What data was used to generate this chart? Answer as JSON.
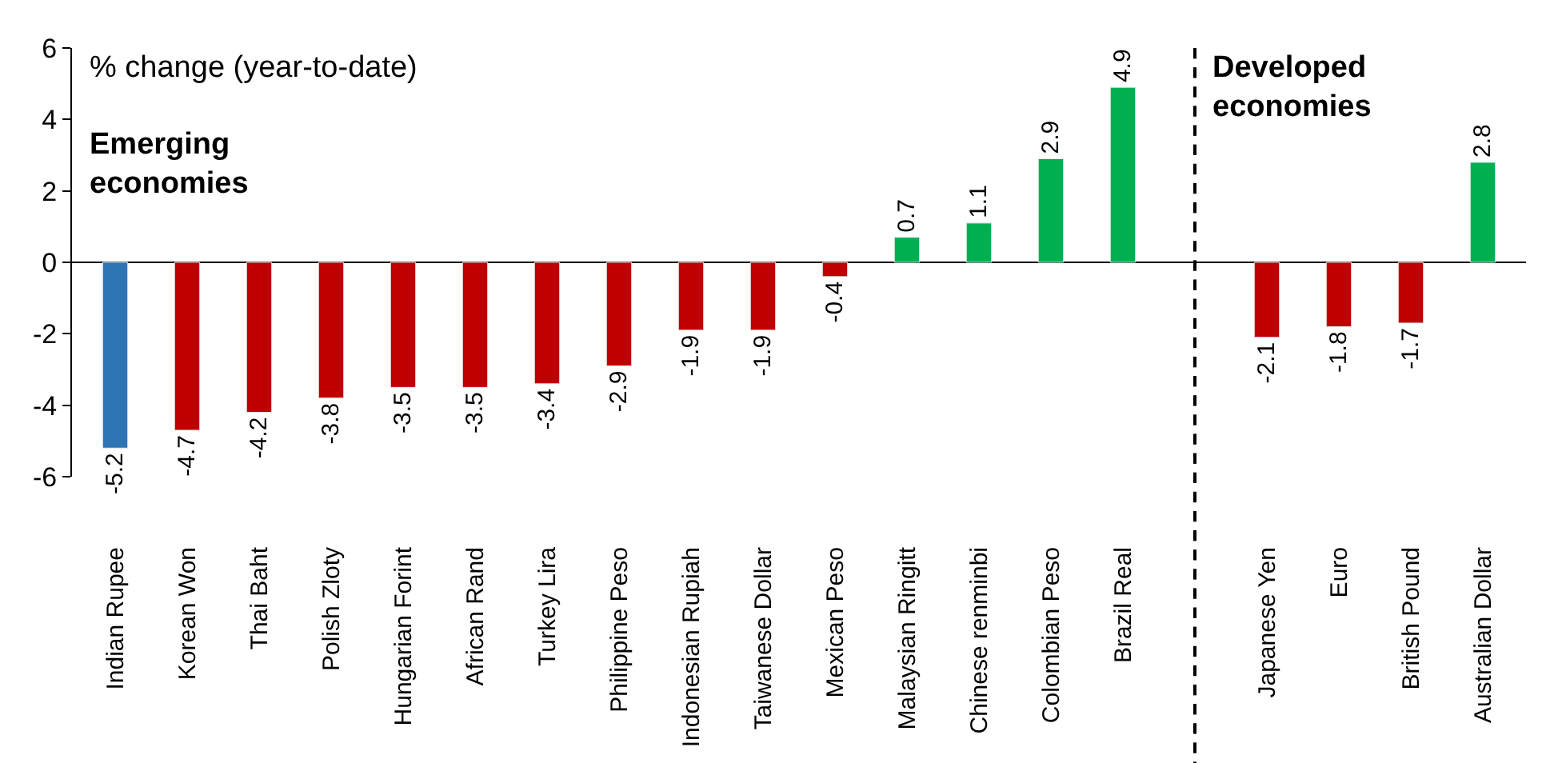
{
  "chart_data": {
    "type": "bar",
    "categories": [
      "Indian Rupee",
      "Korean Won",
      "Thai Baht",
      "Polish Zloty",
      "Hungarian Forint",
      "African Rand",
      "Turkey Lira",
      "Philippine Peso",
      "Indonesian Rupiah",
      "Taiwanese Dollar",
      "Mexican Peso",
      "Malaysian Ringitt",
      "Chinese renminbi",
      "Colombian Peso",
      "Brazil Real",
      null,
      "Japanese Yen",
      "Euro",
      "British Pound",
      "Australian Dollar"
    ],
    "values": [
      -5.2,
      -4.7,
      -4.2,
      -3.8,
      -3.5,
      -3.5,
      -3.4,
      -2.9,
      -1.9,
      -1.9,
      -0.4,
      0.7,
      1.1,
      2.9,
      4.9,
      null,
      -2.1,
      -1.8,
      -1.7,
      2.8
    ],
    "colors": [
      "#2e75b6",
      "#c00000",
      "#c00000",
      "#c00000",
      "#c00000",
      "#c00000",
      "#c00000",
      "#c00000",
      "#c00000",
      "#c00000",
      "#c00000",
      "#00b050",
      "#00b050",
      "#00b050",
      "#00b050",
      null,
      "#c00000",
      "#c00000",
      "#c00000",
      "#00b050"
    ],
    "data_labels": true,
    "ylim": [
      -6,
      6
    ],
    "yticks": [
      -6,
      -4,
      -2,
      0,
      2,
      4,
      6
    ],
    "legend": false,
    "annotations": [
      "% change (year-to-date)",
      "Emerging\neconomies",
      "Developed\neconomies"
    ]
  }
}
